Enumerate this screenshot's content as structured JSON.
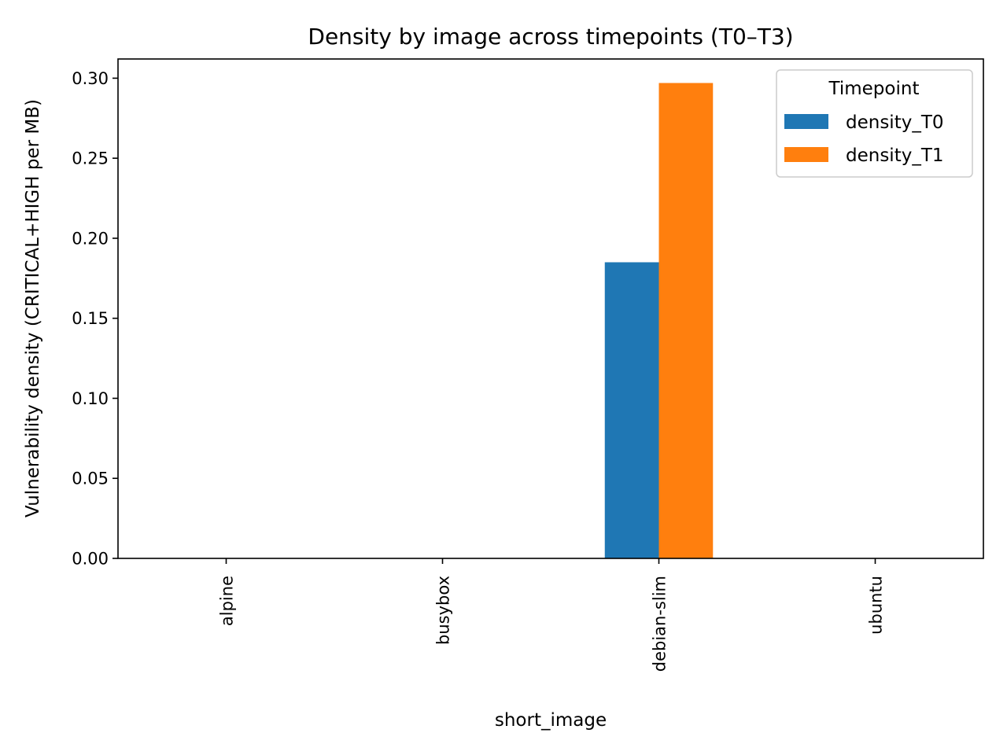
{
  "chart_data": {
    "type": "bar",
    "title": "Density by image across timepoints (T0–T3)",
    "xlabel": "short_image",
    "ylabel": "Vulnerability density (CRITICAL+HIGH per MB)",
    "categories": [
      "alpine",
      "busybox",
      "debian-slim",
      "ubuntu"
    ],
    "series": [
      {
        "name": "density_T0",
        "color": "#1f77b4",
        "values": [
          0,
          0,
          0.185,
          0
        ]
      },
      {
        "name": "density_T1",
        "color": "#ff7f0e",
        "values": [
          0,
          0,
          0.297,
          0
        ]
      }
    ],
    "ylim": [
      0,
      0.312
    ],
    "yticks": [
      "0.00",
      "0.05",
      "0.10",
      "0.15",
      "0.20",
      "0.25",
      "0.30"
    ],
    "legend": {
      "title": "Timepoint",
      "placement": "top-right"
    },
    "grid": false
  }
}
